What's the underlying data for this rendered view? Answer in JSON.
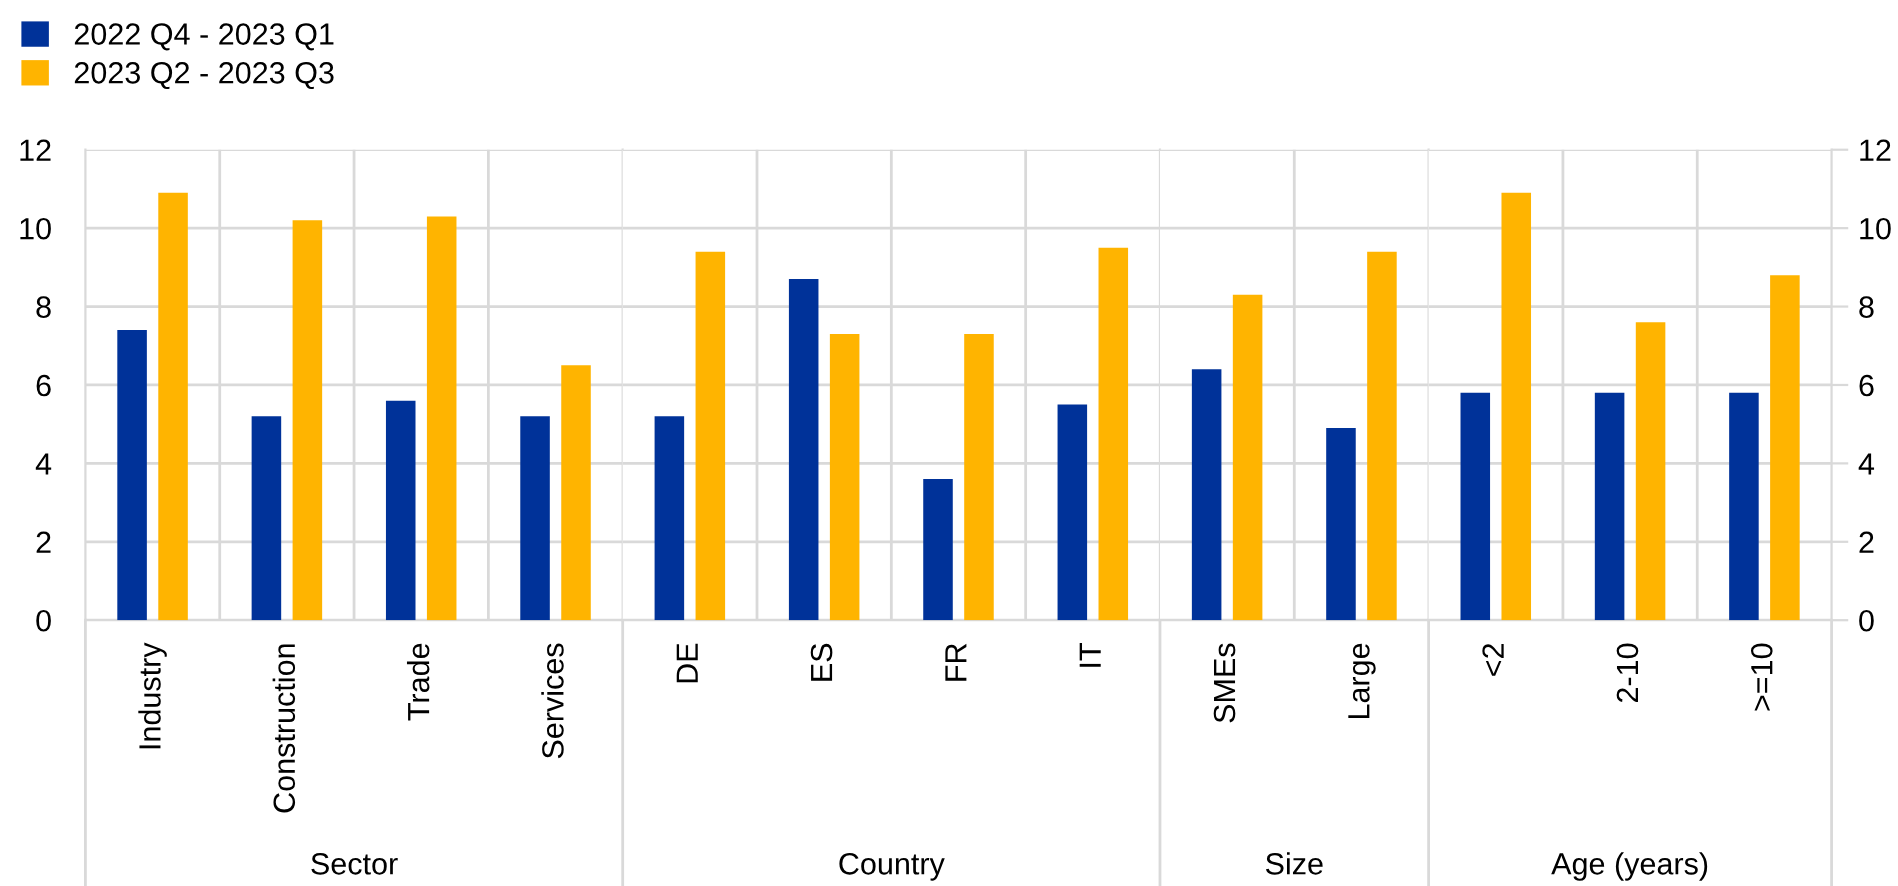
{
  "chart_data": [
    {
      "type": "bar",
      "xlabel": "Sector",
      "categories": [
        "Industry",
        "Construction",
        "Trade",
        "Services"
      ],
      "series": [
        {
          "name": "2022 Q4 - 2023 Q1",
          "color": "#003299",
          "values": [
            7.4,
            5.2,
            5.6,
            5.2
          ]
        },
        {
          "name": "2023 Q2 - 2023 Q3",
          "color": "#ffb400",
          "values": [
            10.9,
            10.2,
            10.3,
            6.5
          ]
        }
      ],
      "ylim": [
        0,
        12
      ],
      "yticks": [
        0,
        2,
        4,
        6,
        8,
        10,
        12
      ],
      "grid": true,
      "legend": "top left"
    },
    {
      "type": "bar",
      "xlabel": "Country",
      "categories": [
        "DE",
        "ES",
        "FR",
        "IT"
      ],
      "series": [
        {
          "color": "#003299",
          "values": [
            5.2,
            8.7,
            3.6,
            5.5
          ]
        },
        {
          "color": "#ffb400",
          "values": [
            9.4,
            7.3,
            7.3,
            9.5
          ]
        }
      ],
      "ylim": [
        0,
        12
      ],
      "yticks": [
        0,
        2,
        4,
        6,
        8,
        10,
        12
      ],
      "grid": true,
      "tick_labels": "x"
    },
    {
      "type": "bar",
      "xlabel": "Size",
      "categories": [
        "SMEs",
        "Large"
      ],
      "series": [
        {
          "color": "#003299",
          "values": [
            6.4,
            4.9
          ]
        },
        {
          "color": "#ffb400",
          "values": [
            8.3,
            9.4
          ]
        }
      ],
      "ylim": [
        0,
        12
      ],
      "yticks": [
        0,
        2,
        4,
        6,
        8,
        10,
        12
      ],
      "grid": true,
      "tick_labels": "x"
    },
    {
      "type": "bar",
      "xlabel": "Age (years)",
      "categories": [
        "<2",
        "2-10",
        ">=10"
      ],
      "series": [
        {
          "color": "#003299",
          "values": [
            5.8,
            5.8,
            5.8
          ]
        },
        {
          "color": "#ffb400",
          "values": [
            10.9,
            7.6,
            8.8
          ]
        }
      ],
      "ylim": [
        0,
        12
      ],
      "yticks": [
        0,
        2,
        4,
        6,
        8,
        10,
        12
      ],
      "grid": true
    }
  ]
}
